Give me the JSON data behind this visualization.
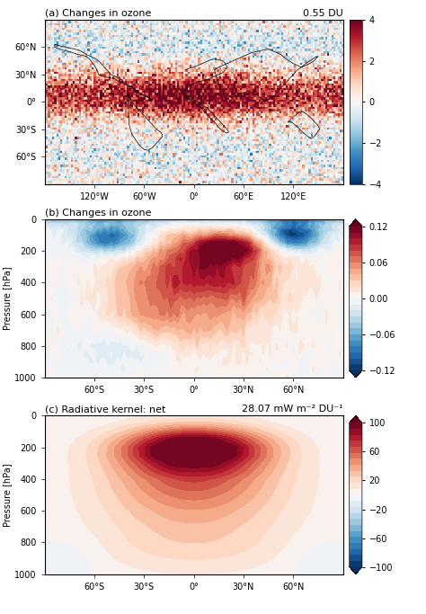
{
  "panel_a": {
    "title_left": "(a) Changes in ozone",
    "title_right": "0.55 DU",
    "cmap_vmin": -4,
    "cmap_vmax": 4,
    "cbar_ticks": [
      -4,
      -2,
      0,
      2,
      4
    ],
    "lon_ticks": [
      -120,
      -60,
      0,
      60,
      120
    ],
    "lon_labels": [
      "120°W",
      "60°W",
      "0°",
      "60°E",
      "120°E"
    ],
    "lat_ticks": [
      -60,
      -30,
      0,
      30,
      60
    ],
    "lat_labels": [
      "60°S",
      "30°S",
      "0°",
      "30°N",
      "60°N"
    ]
  },
  "panel_b": {
    "title": "(b) Changes in ozone",
    "cmap_vmin": -0.12,
    "cmap_vmax": 0.12,
    "cbar_ticks": [
      -0.12,
      -0.06,
      0,
      0.06,
      0.12
    ],
    "ylabel": "Pressure [hPa]",
    "pressure_ticks": [
      0,
      200,
      400,
      600,
      800,
      1000
    ],
    "lat_ticks": [
      -60,
      -30,
      0,
      30,
      60
    ],
    "lat_labels": [
      "60°S",
      "30°S",
      "0°",
      "30°N",
      "60°N"
    ]
  },
  "panel_c": {
    "title_left": "(c) Radiative kernel: net",
    "title_right": "28.07 mW m⁻² DU⁻¹",
    "cmap_vmin": -100,
    "cmap_vmax": 100,
    "cbar_ticks": [
      -100,
      -60,
      -20,
      20,
      60,
      100
    ],
    "ylabel": "Pressure [hPa]",
    "pressure_ticks": [
      0,
      200,
      400,
      600,
      800,
      1000
    ],
    "lat_ticks": [
      -60,
      -30,
      0,
      30,
      60
    ],
    "lat_labels": [
      "60°S",
      "30°S",
      "0°",
      "30°N",
      "60°N"
    ]
  }
}
